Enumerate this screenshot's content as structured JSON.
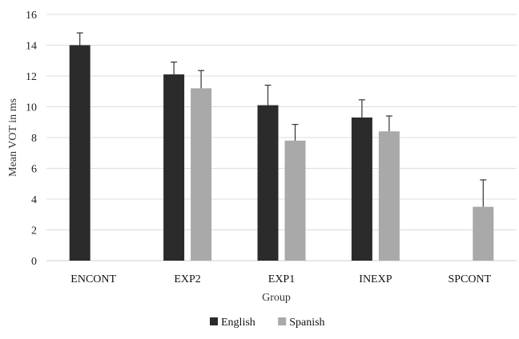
{
  "chart_data": {
    "type": "bar",
    "title": "",
    "xlabel": "Group",
    "ylabel": "Mean VOT in ms",
    "categories": [
      "ENCONT",
      "EXP2",
      "EXP1",
      "INEXP",
      "SPCONT"
    ],
    "ylim": [
      0,
      16
    ],
    "yticks": [
      "0",
      "2",
      "4",
      "6",
      "8",
      "10",
      "12",
      "14",
      "16"
    ],
    "grid": true,
    "legend_position": "bottom",
    "series": [
      {
        "name": "English",
        "color": "#2b2b2b",
        "values": [
          14.0,
          12.1,
          10.1,
          9.3,
          null
        ],
        "error": [
          0.8,
          0.8,
          1.3,
          1.15,
          null
        ]
      },
      {
        "name": "Spanish",
        "color": "#a9a9a9",
        "values": [
          null,
          11.2,
          7.8,
          8.4,
          3.5
        ],
        "error": [
          null,
          1.15,
          1.05,
          1.0,
          1.75
        ]
      }
    ]
  }
}
